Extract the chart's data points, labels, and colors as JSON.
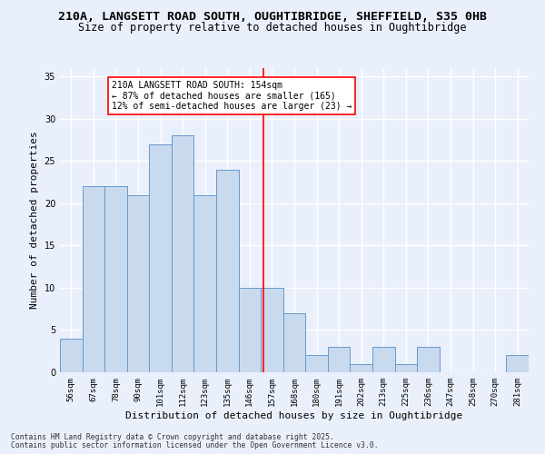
{
  "title": "210A, LANGSETT ROAD SOUTH, OUGHTIBRIDGE, SHEFFIELD, S35 0HB",
  "subtitle": "Size of property relative to detached houses in Oughtibridge",
  "xlabel": "Distribution of detached houses by size in Oughtibridge",
  "ylabel": "Number of detached properties",
  "bins": [
    "56sqm",
    "67sqm",
    "78sqm",
    "90sqm",
    "101sqm",
    "112sqm",
    "123sqm",
    "135sqm",
    "146sqm",
    "157sqm",
    "168sqm",
    "180sqm",
    "191sqm",
    "202sqm",
    "213sqm",
    "225sqm",
    "236sqm",
    "247sqm",
    "258sqm",
    "270sqm",
    "281sqm"
  ],
  "values": [
    4,
    22,
    22,
    21,
    27,
    28,
    21,
    24,
    10,
    10,
    7,
    2,
    3,
    1,
    3,
    1,
    3,
    0,
    0,
    0,
    2
  ],
  "bar_color": "#c9d9ee",
  "bar_edge_color": "#6699cc",
  "red_line_x": 8.636,
  "annotation_text": "210A LANGSETT ROAD SOUTH: 154sqm\n← 87% of detached houses are smaller (165)\n12% of semi-detached houses are larger (23) →",
  "annotation_box_color": "white",
  "annotation_box_edge_color": "red",
  "ylim": [
    0,
    36
  ],
  "yticks": [
    0,
    5,
    10,
    15,
    20,
    25,
    30,
    35
  ],
  "footer1": "Contains HM Land Registry data © Crown copyright and database right 2025.",
  "footer2": "Contains public sector information licensed under the Open Government Licence v3.0.",
  "background_color": "#eaf0fb",
  "grid_color": "white",
  "title_fontsize": 9.5,
  "subtitle_fontsize": 8.5,
  "tick_fontsize": 6.5,
  "ylabel_fontsize": 8,
  "xlabel_fontsize": 8,
  "footer_fontsize": 5.8,
  "annotation_fontsize": 7.0
}
